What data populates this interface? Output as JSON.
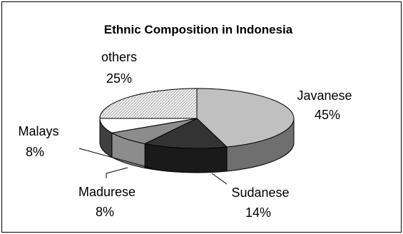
{
  "chart_data": {
    "type": "pie",
    "title": "Ethnic Composition in Indonesia",
    "slices": [
      {
        "label": "Javanese",
        "value": 45,
        "value_label": "45%",
        "color": "#c0c0c0",
        "side_color": "#6f6f6f"
      },
      {
        "label": "Sudanese",
        "value": 14,
        "value_label": "14%",
        "color": "#333333",
        "side_color": "#1a1a1a"
      },
      {
        "label": "Madurese",
        "value": 8,
        "value_label": "8%",
        "color": "#8c8c8c",
        "side_color": "#8c8c8c"
      },
      {
        "label": "Malays",
        "value": 8,
        "value_label": "8%",
        "color": "#ffffff",
        "side_color": "#3f3f3f"
      },
      {
        "label": "others",
        "value": 25,
        "value_label": "25%",
        "color": "#e6e6e6",
        "side_color": "#a5a5a5",
        "pattern": "hatch"
      }
    ],
    "style": "3d-pie",
    "legend": "none"
  }
}
